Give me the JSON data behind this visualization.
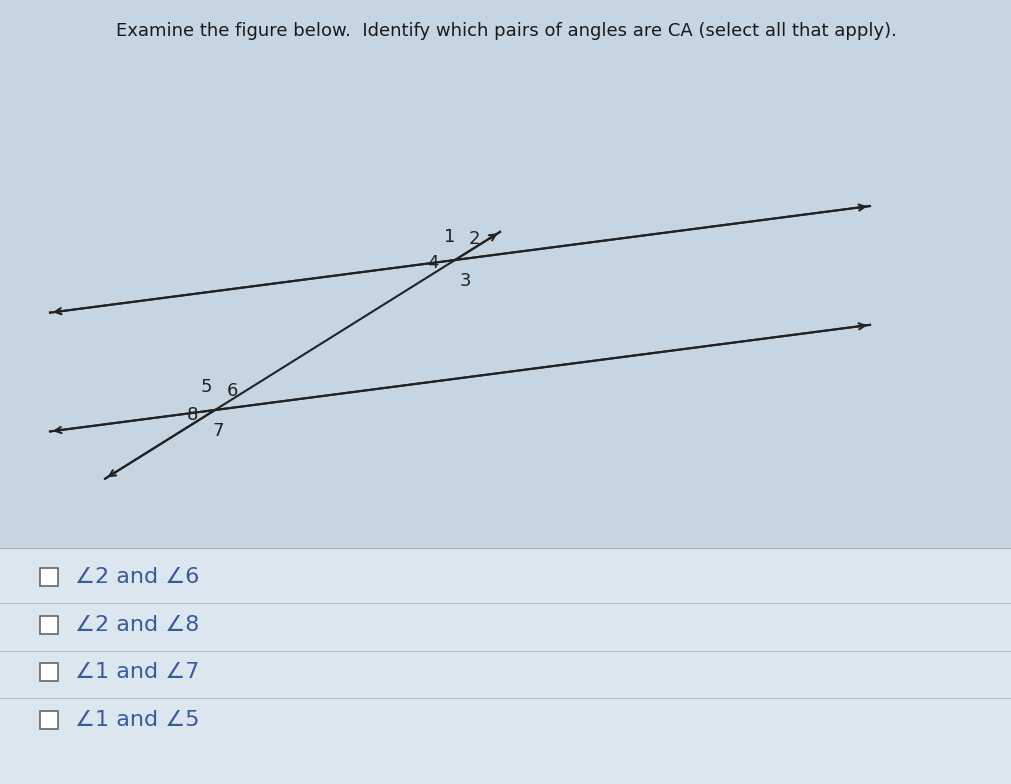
{
  "title": "Examine the figure below.  Identify which pairs of angles are CA (select all that apply).",
  "title_fontsize": 13.0,
  "title_color": "#1a1a1a",
  "bg_color": "#c5d5e2",
  "checkbox_options": [
    "−2 and −6",
    "−2 and −8",
    "−1 and −7",
    "−1 and −5"
  ],
  "checkbox_color": "#3a5a99",
  "checkbox_fontsize": 16,
  "line_color": "#222222",
  "number_color": "#222222",
  "number_fontsize": 13,
  "ix1": 0.455,
  "iy1": 0.655,
  "ix2": 0.215,
  "iy2": 0.415,
  "parallel_slope": -0.13,
  "lw": 1.5
}
